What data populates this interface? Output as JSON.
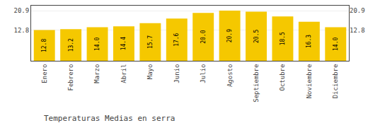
{
  "chart_data": {
    "type": "bar",
    "title": "Temperaturas Medias en serra",
    "categories": [
      "Enero",
      "Febrero",
      "Marzo",
      "Abril",
      "Mayo",
      "Junio",
      "Julio",
      "Agosto",
      "Septiembre",
      "Octubre",
      "Noviembre",
      "Diciembre"
    ],
    "values": [
      12.8,
      13.2,
      14.0,
      14.4,
      15.7,
      17.6,
      20.0,
      20.9,
      20.5,
      18.5,
      16.3,
      14.0
    ],
    "value_labels": [
      "12.8",
      "13.2",
      "14.0",
      "14.4",
      "15.7",
      "17.6",
      "20.0",
      "20.9",
      "20.5",
      "18.5",
      "16.3",
      "14.0"
    ],
    "data_labels": true,
    "color": "#F5C800",
    "ylim": [
      0,
      23.0
    ],
    "yticks": [
      12.8,
      20.9
    ],
    "y2lim": [
      0,
      23.0
    ],
    "y2ticks": [
      12.8,
      20.9
    ],
    "grid": true
  }
}
